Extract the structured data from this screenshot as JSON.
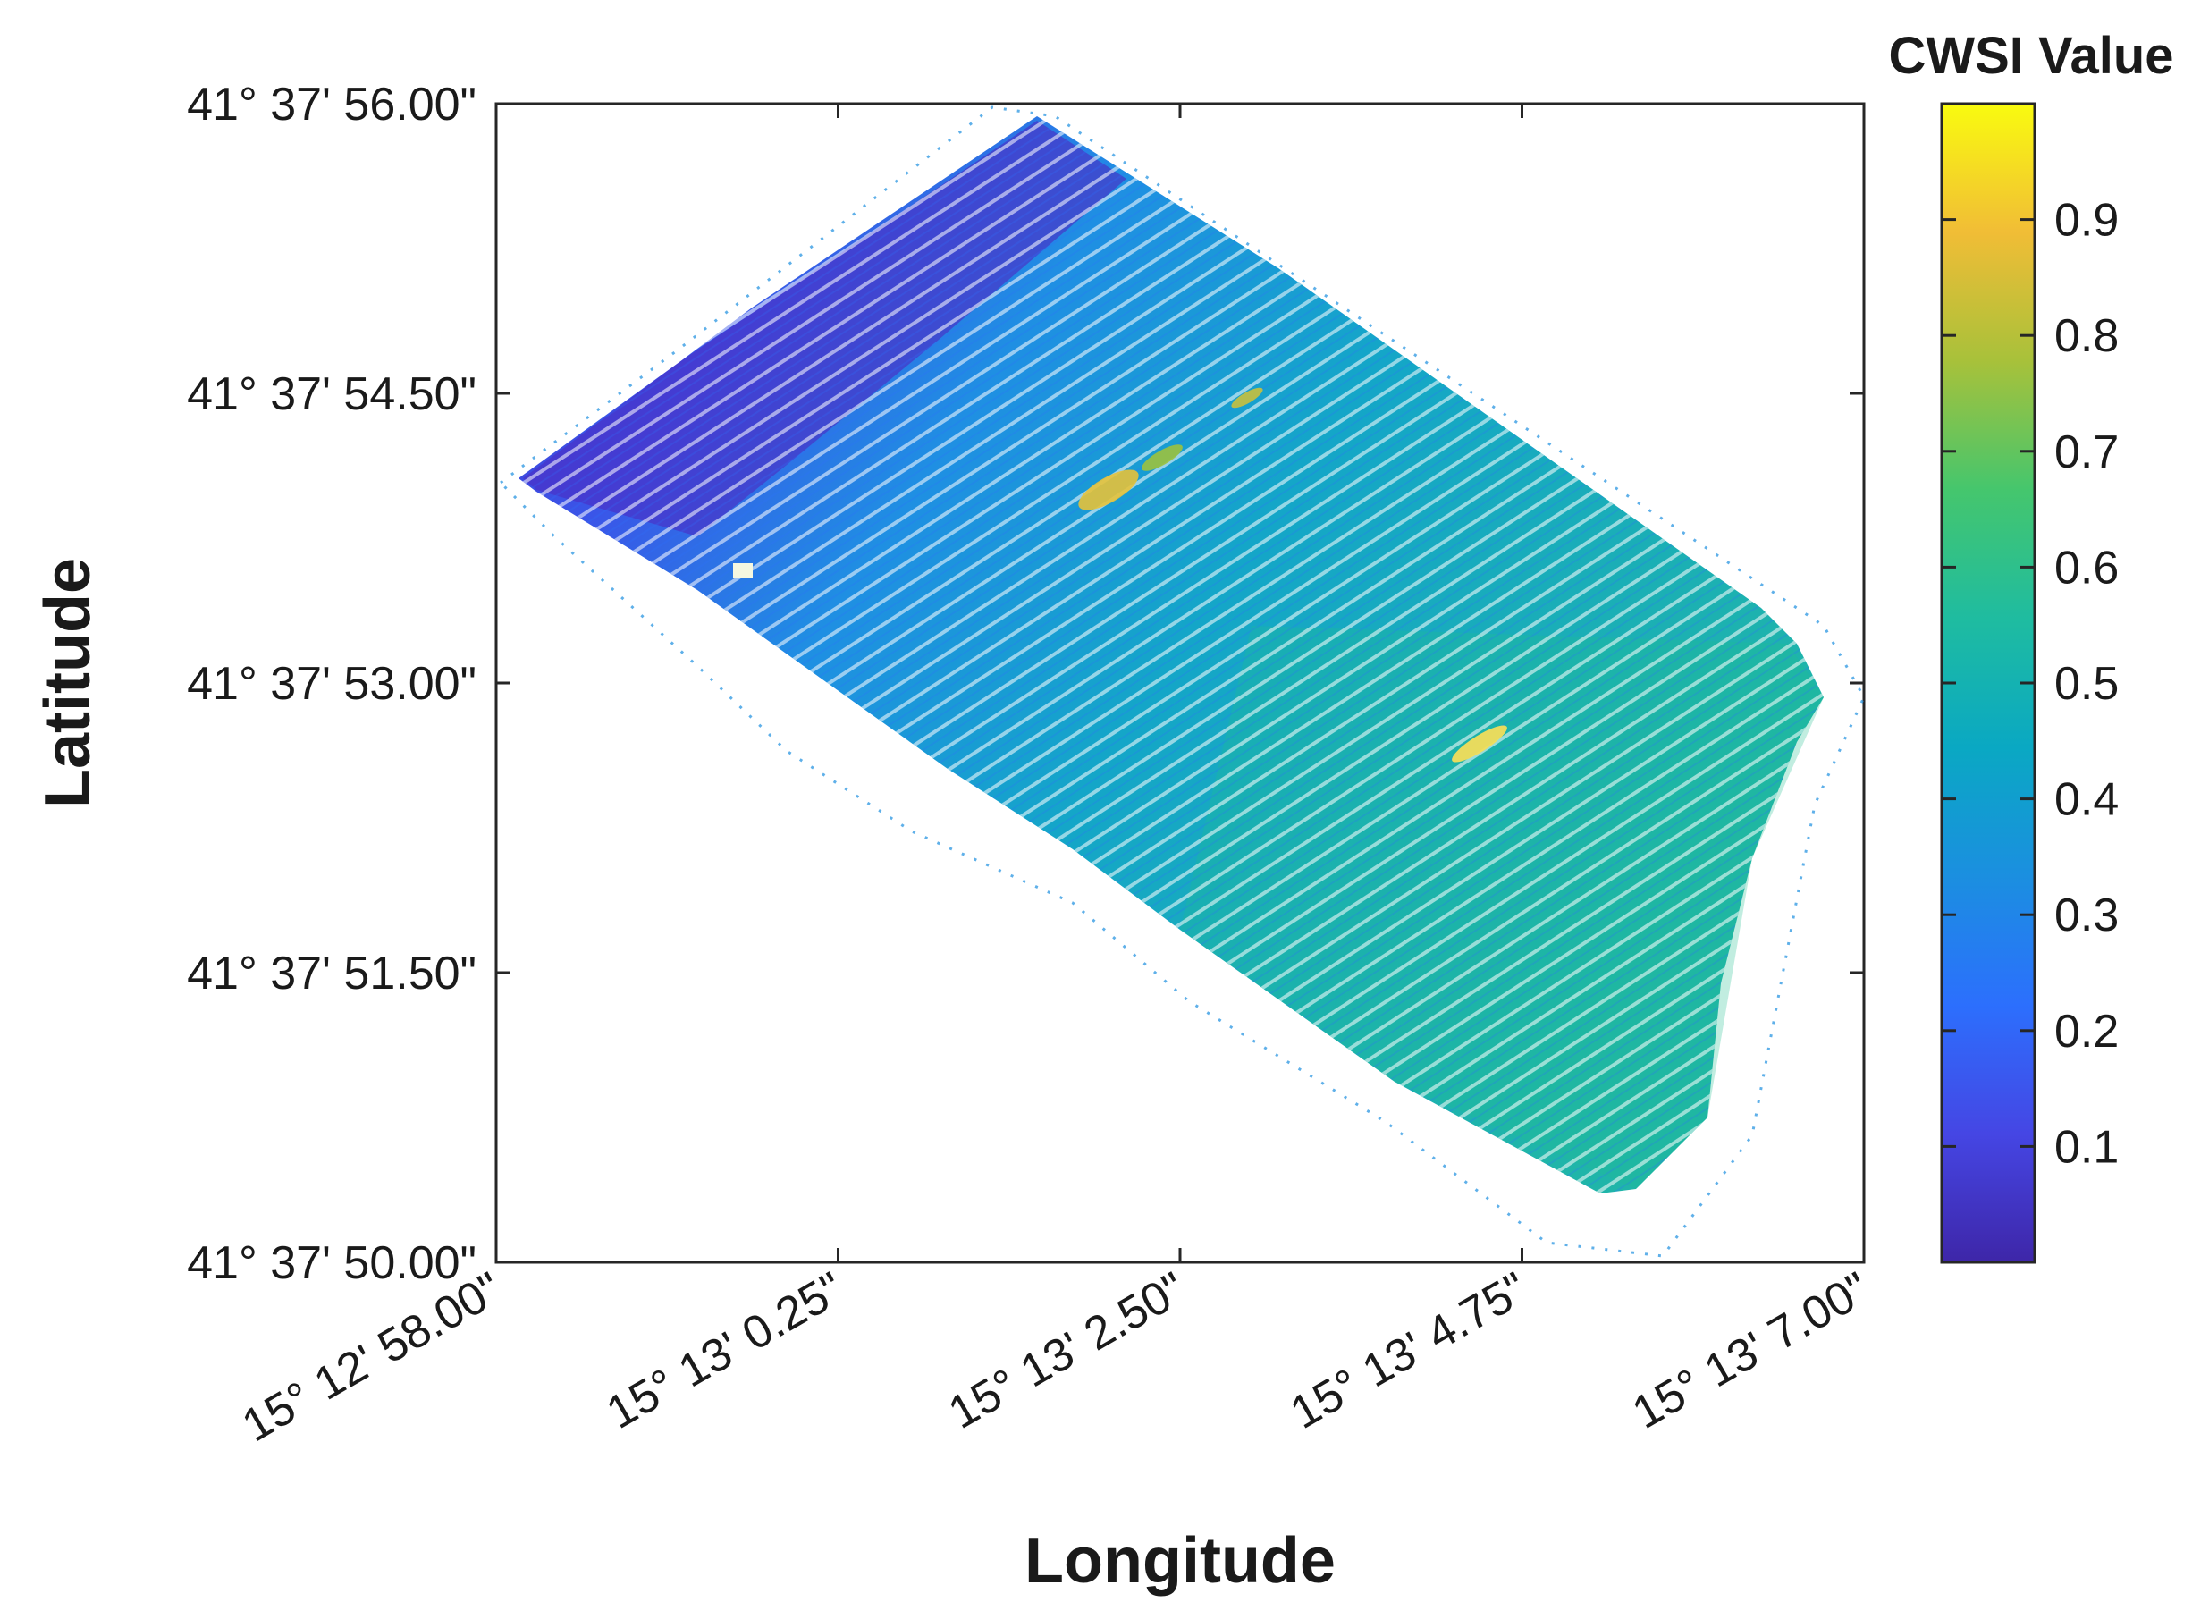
{
  "chart_data": {
    "type": "heatmap",
    "xlabel": "Longitude",
    "ylabel": "Latitude",
    "x_ticks": [
      "15° 12' 58.00\"",
      "15° 13' 0.25\"",
      "15° 13' 2.50\"",
      "15° 13' 4.75\"",
      "15° 13' 7.00\""
    ],
    "y_ticks": [
      "41° 37' 56.00\"",
      "41° 37' 54.50\"",
      "41° 37' 53.00\"",
      "41° 37' 51.50\"",
      "41° 37' 50.00\""
    ],
    "xlim_seconds": [
      58.0,
      67.0
    ],
    "ylim_seconds": [
      50.0,
      56.0
    ],
    "grid": false,
    "colorbar": {
      "title": "CWSI Value",
      "ticks": [
        "0.1",
        "0.2",
        "0.3",
        "0.4",
        "0.5",
        "0.6",
        "0.7",
        "0.8",
        "0.9"
      ],
      "range": [
        0,
        1
      ],
      "colormap": "parula",
      "colors": [
        "#3e26a8",
        "#4546e4",
        "#2c6ffd",
        "#1b8fe0",
        "#0aa8c3",
        "#1fbca0",
        "#45c66d",
        "#a8c13a",
        "#f1bd36",
        "#f9fb0f"
      ]
    },
    "field": {
      "description_value_trend": "CWSI low (0.05-0.2) in north-west corner, 0.3-0.5 across most of the field",
      "dominant_range": [
        0.3,
        0.5
      ],
      "min_region_value": 0.05,
      "hotspot_values": [
        0.7,
        0.75
      ]
    }
  }
}
